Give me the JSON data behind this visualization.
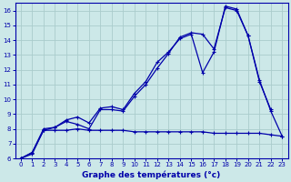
{
  "xlabel": "Graphe des températures (°c)",
  "bg_color": "#cce8e8",
  "grid_color": "#aacccc",
  "line_color": "#0000aa",
  "xlim": [
    -0.5,
    23.5
  ],
  "ylim": [
    6,
    16.5
  ],
  "xticks": [
    0,
    1,
    2,
    3,
    4,
    5,
    6,
    7,
    8,
    9,
    10,
    11,
    12,
    13,
    14,
    15,
    16,
    17,
    18,
    19,
    20,
    21,
    22,
    23
  ],
  "yticks": [
    6,
    7,
    8,
    9,
    10,
    11,
    12,
    13,
    14,
    15,
    16
  ],
  "line1_x": [
    0,
    1,
    2,
    3,
    4,
    5,
    6,
    7,
    8,
    9,
    10,
    11,
    12,
    13,
    14,
    15,
    16,
    17,
    18,
    19,
    20,
    21,
    22,
    23
  ],
  "line1_y": [
    6.0,
    6.4,
    7.9,
    8.1,
    8.6,
    8.8,
    8.4,
    9.4,
    9.5,
    9.3,
    10.4,
    11.2,
    12.5,
    13.2,
    14.1,
    14.4,
    11.8,
    13.2,
    16.3,
    16.1,
    14.3,
    11.2,
    9.3,
    null
  ],
  "line2_x": [
    0,
    1,
    2,
    3,
    4,
    5,
    6,
    7,
    8,
    9,
    10,
    11,
    12,
    13,
    14,
    15,
    16,
    17,
    18,
    19,
    20,
    21,
    22,
    23
  ],
  "line2_y": [
    6.0,
    6.4,
    8.0,
    8.1,
    8.5,
    8.3,
    8.0,
    9.3,
    9.3,
    9.2,
    10.2,
    11.0,
    12.1,
    13.1,
    14.2,
    14.5,
    14.4,
    13.4,
    16.2,
    16.0,
    14.3,
    11.3,
    9.2,
    7.5
  ],
  "line3_x": [
    0,
    1,
    2,
    3,
    4,
    5,
    6,
    7,
    8,
    9,
    10,
    11,
    12,
    13,
    14,
    15,
    16,
    17,
    18,
    19,
    20,
    21,
    22,
    23
  ],
  "line3_y": [
    6.0,
    6.3,
    7.9,
    7.9,
    7.9,
    8.0,
    7.9,
    7.9,
    7.9,
    7.9,
    7.8,
    7.8,
    7.8,
    7.8,
    7.8,
    7.8,
    7.8,
    7.7,
    7.7,
    7.7,
    7.7,
    7.7,
    7.6,
    7.5
  ],
  "xlabel_fontsize": 6.5,
  "tick_fontsize": 5.0
}
